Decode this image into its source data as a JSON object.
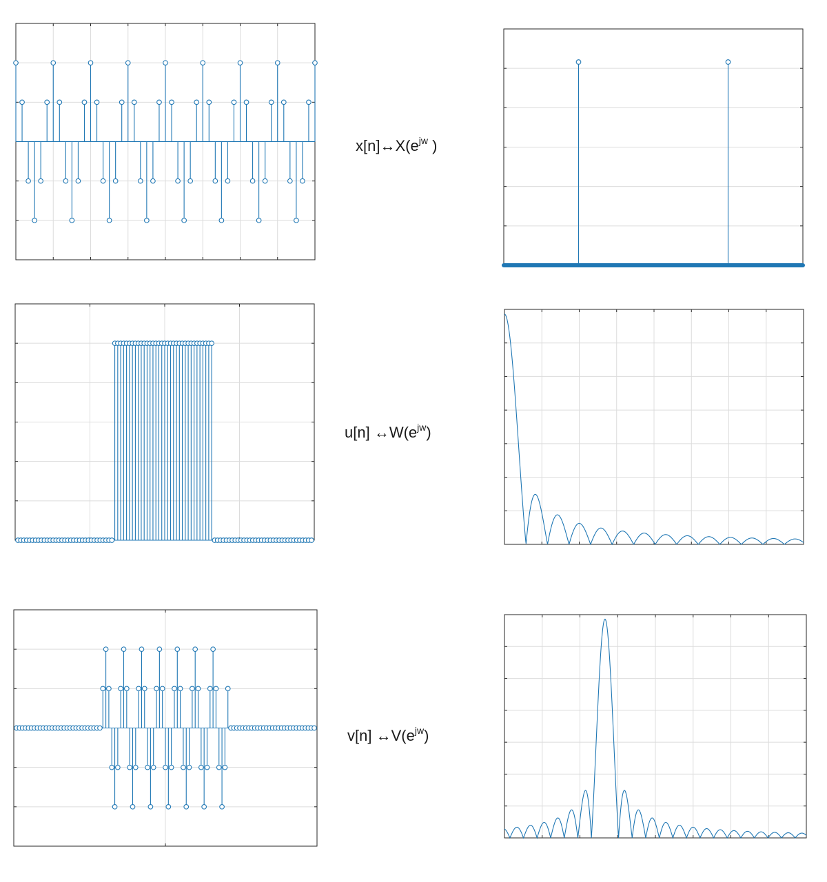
{
  "labels": [
    {
      "signal": "x[n]",
      "arrow": "↔",
      "transform": "X(e",
      "sup": "jw",
      "close": " )"
    },
    {
      "signal": "u[n] ",
      "arrow": "↔",
      "transform": "W(e",
      "sup": "jw",
      "close": ")"
    },
    {
      "signal": "v[n] ",
      "arrow": "↔",
      "transform": "V(e",
      "sup": "jw",
      "close": ")"
    }
  ],
  "colors": {
    "series": "#1f77b4",
    "grid": "#dcdcdc",
    "axes": "#262626"
  },
  "chart_data": [
    {
      "id": "x-time",
      "type": "stem",
      "grid": true,
      "xlim": [
        0,
        48
      ],
      "ylim": [
        -3,
        3
      ],
      "x": [
        0,
        1,
        2,
        3,
        4,
        5,
        6,
        7,
        8,
        9,
        10,
        11,
        12,
        13,
        14,
        15,
        16,
        17,
        18,
        19,
        20,
        21,
        22,
        23,
        24,
        25,
        26,
        27,
        28,
        29,
        30,
        31,
        32,
        33,
        34,
        35,
        36,
        37,
        38,
        39,
        40,
        41,
        42,
        43,
        44,
        45,
        46,
        47,
        48
      ],
      "y": [
        2,
        1,
        -1,
        -2,
        -1,
        1,
        2,
        1,
        -1,
        -2,
        -1,
        1,
        2,
        1,
        -1,
        -2,
        -1,
        1,
        2,
        1,
        -1,
        -2,
        -1,
        1,
        2,
        1,
        -1,
        -2,
        -1,
        1,
        2,
        1,
        -1,
        -2,
        -1,
        1,
        2,
        1,
        -1,
        -2,
        -1,
        1,
        2,
        1,
        -1,
        -2,
        -1,
        1,
        2
      ]
    },
    {
      "id": "x-freq",
      "type": "stem",
      "grid": false,
      "xlim": [
        0,
        1
      ],
      "ylim": [
        0,
        1
      ],
      "x": [
        0.25,
        0.75
      ],
      "y": [
        0.86,
        0.86
      ],
      "baseline_emphasis": true
    },
    {
      "id": "u-time",
      "type": "stem",
      "grid": true,
      "xlim": [
        0,
        100
      ],
      "ylim": [
        0,
        1.2
      ],
      "pulse_start": 33,
      "pulse_end": 66,
      "n_points": 101
    },
    {
      "id": "u-freq",
      "type": "line",
      "grid": true,
      "shape": "abs-sinc",
      "xlim": [
        0,
        1
      ],
      "ylim": [
        0,
        1
      ],
      "main_lobe_zero": 0.072,
      "n_lobes": 20
    },
    {
      "id": "v-time",
      "type": "stem",
      "grid": true,
      "xlim": [
        0,
        100
      ],
      "ylim": [
        -3,
        3
      ],
      "x": [
        29,
        30,
        31,
        32,
        33,
        34,
        35,
        36,
        37,
        38,
        39,
        40,
        41,
        42,
        43,
        44,
        45,
        46,
        47,
        48,
        49,
        50,
        51,
        52,
        53,
        54,
        55,
        56,
        57,
        58,
        59,
        60,
        61,
        62,
        63,
        64,
        65,
        66,
        67,
        68,
        69,
        70,
        71,
        72
      ],
      "y": [
        1,
        2,
        1,
        -1,
        -2,
        -1,
        1,
        2,
        1,
        -1,
        -2,
        -1,
        1,
        2,
        1,
        -1,
        -2,
        -1,
        1,
        2,
        1,
        -1,
        -2,
        -1,
        1,
        2,
        1,
        -1,
        -2,
        -1,
        1,
        2,
        1,
        -1,
        -2,
        -1,
        1,
        2,
        1,
        -1,
        -2,
        -1,
        1,
        0
      ],
      "zero_padding": true,
      "n_points": 101
    },
    {
      "id": "v-freq",
      "type": "line",
      "grid": true,
      "shape": "shifted-abs-sinc",
      "xlim": [
        0,
        1
      ],
      "ylim": [
        0,
        1
      ],
      "peak_at": 0.333,
      "main_lobe_zero": 0.045
    }
  ]
}
